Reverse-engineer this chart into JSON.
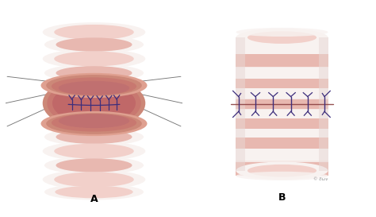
{
  "bg_color": "#ffffff",
  "label_A": "A",
  "label_B": "B",
  "label_fontsize": 9,
  "label_fontweight": "bold",
  "pk_outer": "#f2d0ca",
  "pk_band": "#e8b8b0",
  "pk_mid": "#dfa090",
  "pk_dark": "#cc8878",
  "pk_inner": "#c87870",
  "pk_lumen": "#c06868",
  "white_band": "#f8f2f0",
  "suture_color": "#3d2e7c",
  "thread_color": "#777777",
  "anastomosis_line": "#8B4040",
  "shadow_color": "#e8d8d5"
}
